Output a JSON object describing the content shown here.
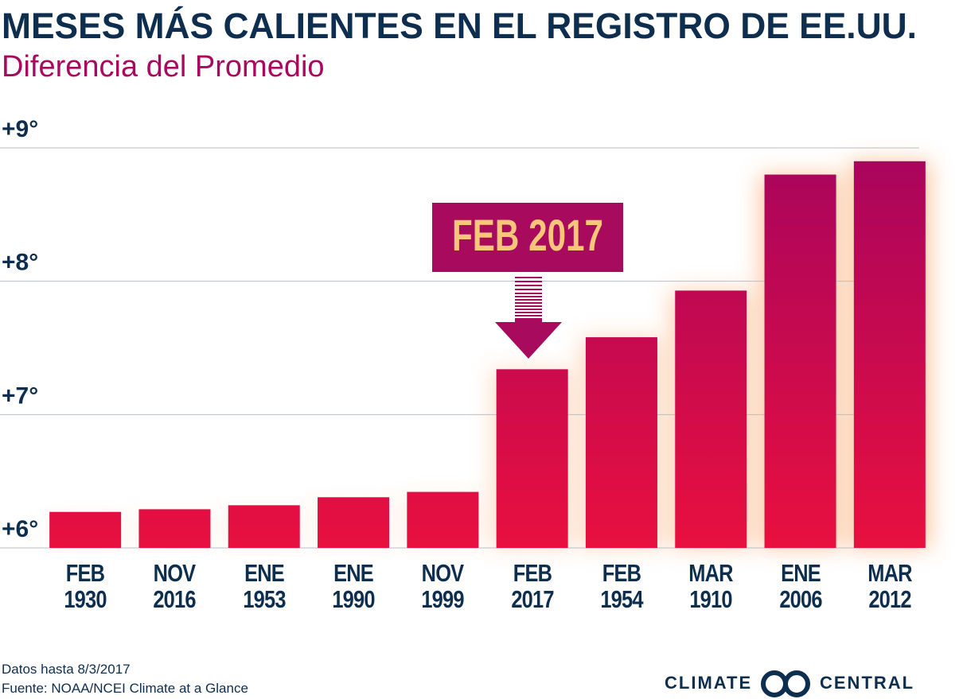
{
  "chart_data": {
    "type": "bar",
    "title": "MESES MÁS CALIENTES EN EL REGISTRO DE EE.UU.",
    "subtitle": "Diferencia del Promedio",
    "categories": [
      "FEB 1930",
      "NOV 2016",
      "ENE 1953",
      "ENE 1990",
      "NOV 1999",
      "FEB 2017",
      "FEB 1954",
      "MAR 1910",
      "ENE 2006",
      "MAR 2012"
    ],
    "values": [
      6.27,
      6.29,
      6.32,
      6.38,
      6.42,
      7.34,
      7.58,
      7.93,
      8.8,
      8.9
    ],
    "colors": [
      "#e8103f",
      "#a8045e"
    ],
    "ylim": [
      6,
      9
    ],
    "yticks": [
      {
        "value": 6,
        "label": "+6°"
      },
      {
        "value": 7,
        "label": "+7°"
      },
      {
        "value": 8,
        "label": "+8°"
      },
      {
        "value": 9,
        "label": "+9°"
      }
    ],
    "grid": true,
    "annotation": "FEB 2017",
    "notes": [
      "Datos hasta 8/3/2017",
      "Fuente: NOAA/NCEI Climate at a Glance"
    ],
    "logo": [
      "CLIMATE",
      "CENTRAL"
    ]
  }
}
